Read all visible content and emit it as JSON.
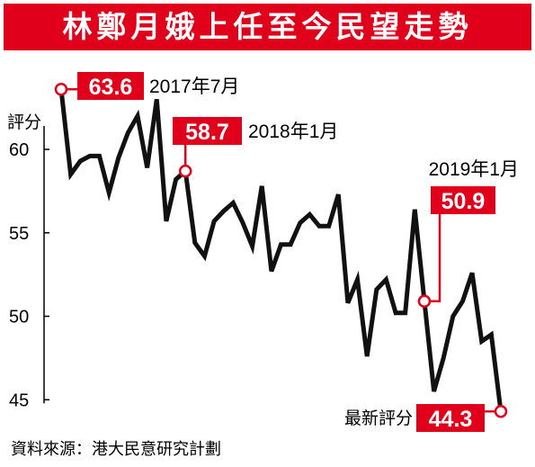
{
  "title": "林鄭月娥上任至今民望走勢",
  "source": "資料來源：港大民意研究計劃",
  "colors": {
    "accent": "#e0001b",
    "line": "#111111"
  },
  "chart_data": {
    "type": "line",
    "title": "林鄭月娥上任至今民望走勢",
    "ylabel": "評分",
    "xlabel": "",
    "ylim": [
      43.5,
      66
    ],
    "yticks": [
      60,
      55,
      50,
      45
    ],
    "grid": false,
    "values": [
      63.6,
      58.5,
      59.3,
      59.6,
      59.6,
      57.4,
      59.5,
      61.0,
      62.0,
      58.9,
      63.0,
      55.7,
      58.2,
      58.7,
      54.4,
      53.6,
      55.7,
      56.3,
      56.8,
      55.6,
      54.2,
      57.8,
      52.7,
      54.3,
      54.3,
      55.6,
      56.1,
      55.4,
      55.4,
      57.3,
      50.8,
      52.2,
      47.6,
      51.6,
      52.2,
      50.2,
      50.2,
      56.4,
      50.9,
      45.5,
      47.5,
      50.0,
      50.9,
      52.6,
      48.5,
      48.9,
      44.3
    ],
    "annotations": [
      {
        "index": 0,
        "value": "63.6",
        "date": "2017年7月"
      },
      {
        "index": 13,
        "value": "58.7",
        "date": "2018年1月"
      },
      {
        "index": 38,
        "value": "50.9",
        "date": "2019年1月"
      },
      {
        "index": 46,
        "value": "44.3",
        "label": "最新評分"
      }
    ]
  }
}
